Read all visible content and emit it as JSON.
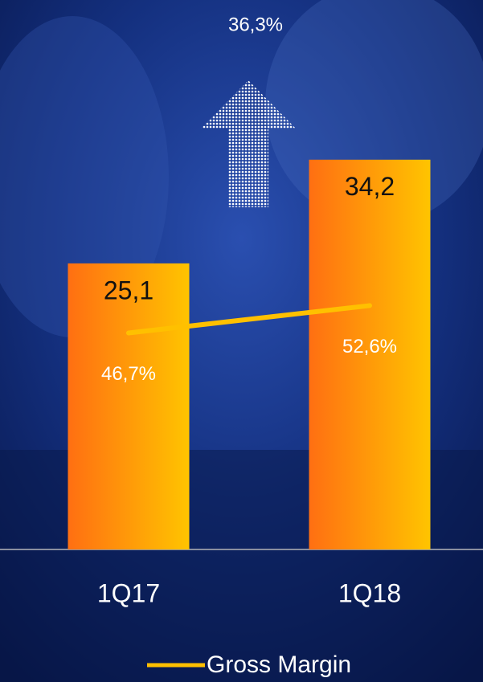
{
  "chart_data": {
    "type": "bar",
    "annotation": "36,3%",
    "categories": [
      "1Q17",
      "1Q18"
    ],
    "series": [
      {
        "type": "bar",
        "color": "#ff6f12",
        "values": [
          25.1,
          34.2
        ],
        "value_labels": [
          "25,1",
          "34,2"
        ]
      },
      {
        "type": "line",
        "name": "Gross Margin",
        "color": "#ffc000",
        "axis": "y2",
        "values": [
          46.7,
          52.6
        ],
        "value_labels": [
          "46,7%",
          "52,6%"
        ]
      }
    ],
    "ylim": [
      0,
      48
    ],
    "y2lim": [
      0,
      118
    ]
  }
}
